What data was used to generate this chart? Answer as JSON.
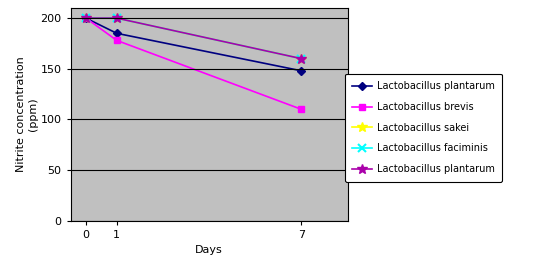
{
  "days": [
    0,
    1,
    7
  ],
  "series": [
    {
      "label": "Lactobacillus plantarum",
      "values": [
        200,
        185,
        148
      ],
      "color": "#000080",
      "marker": "D",
      "markersize": 4,
      "linewidth": 1.2
    },
    {
      "label": "Lactobacillus brevis",
      "values": [
        200,
        178,
        110
      ],
      "color": "#FF00FF",
      "marker": "s",
      "markersize": 5,
      "linewidth": 1.2
    },
    {
      "label": "Lactobacillus sakei",
      "values": [
        200,
        200,
        160
      ],
      "color": "#FFFF00",
      "marker": "*",
      "markersize": 7,
      "linewidth": 1.2
    },
    {
      "label": "Lactobacillus faciminis",
      "values": [
        200,
        200,
        160
      ],
      "color": "#00FFFF",
      "marker": "x",
      "markersize": 6,
      "linewidth": 1.2,
      "markeredgewidth": 1.5
    },
    {
      "label": "Lactobacillus plantarum",
      "values": [
        200,
        200,
        160
      ],
      "color": "#AA00AA",
      "marker": "*",
      "markersize": 7,
      "linewidth": 1.2
    }
  ],
  "xlabel": "Days",
  "ylabel": "Nitrite concentration\n(ppm)",
  "xlim": [
    -0.5,
    8.5
  ],
  "ylim": [
    0,
    210
  ],
  "yticks": [
    0,
    50,
    100,
    150,
    200
  ],
  "xticks": [
    0,
    1,
    7
  ],
  "plot_bg": "#C0C0C0",
  "fig_bg": "#FFFFFF",
  "grid_color": "#000000",
  "legend_fontsize": 7,
  "axis_fontsize": 8,
  "tick_fontsize": 8
}
